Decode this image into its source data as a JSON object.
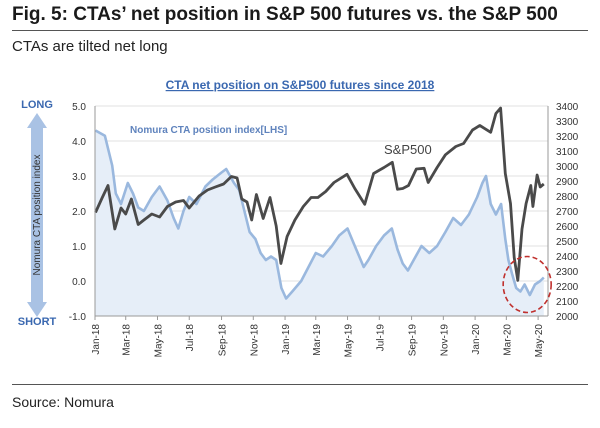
{
  "figure": {
    "title": "Fig. 5: CTAs’ net position in S&P 500 futures vs. the S&P 500",
    "subtitle": "CTAs are tilted net long",
    "source": "Source: Nomura"
  },
  "chart_data": {
    "type": "line",
    "title": "CTA net position on S&P500 futures since 2018",
    "axis_annotations": {
      "top": "LONG",
      "bottom": "SHORT",
      "side": "Nomura CTA position index"
    },
    "left_axis": {
      "ylim": [
        -1.0,
        5.0
      ],
      "ticks": [
        "-1.0",
        "0.0",
        "1.0",
        "2.0",
        "3.0",
        "4.0",
        "5.0"
      ]
    },
    "right_axis": {
      "ylim": [
        2000,
        3400
      ],
      "ticks": [
        "2000",
        "2100",
        "2200",
        "2300",
        "2400",
        "2500",
        "2600",
        "2700",
        "2800",
        "2900",
        "3000",
        "3100",
        "3200",
        "3300",
        "3400"
      ]
    },
    "x_ticks": [
      "Jan-18",
      "Mar-18",
      "May-18",
      "Jul-18",
      "Sep-18",
      "Nov-18",
      "Jan-19",
      "Mar-19",
      "May-19",
      "Jul-19",
      "Sep-19",
      "Nov-19",
      "Jan-20",
      "Mar-20",
      "May-20"
    ],
    "grid": true,
    "series": [
      {
        "name": "Nomura CTA position index[LHS]",
        "axis": "left",
        "style": "area",
        "color": "#9ab8de",
        "fill": "#e6eef8",
        "points": [
          [
            "2018-01-02",
            4.3
          ],
          [
            "2018-01-20",
            4.15
          ],
          [
            "2018-02-03",
            3.3
          ],
          [
            "2018-02-10",
            2.5
          ],
          [
            "2018-02-20",
            2.2
          ],
          [
            "2018-03-05",
            2.8
          ],
          [
            "2018-03-15",
            2.5
          ],
          [
            "2018-03-25",
            2.1
          ],
          [
            "2018-04-05",
            2.0
          ],
          [
            "2018-04-20",
            2.4
          ],
          [
            "2018-05-05",
            2.7
          ],
          [
            "2018-05-20",
            2.3
          ],
          [
            "2018-06-01",
            1.8
          ],
          [
            "2018-06-10",
            1.5
          ],
          [
            "2018-06-20",
            2.0
          ],
          [
            "2018-07-01",
            2.4
          ],
          [
            "2018-07-15",
            2.2
          ],
          [
            "2018-08-01",
            2.7
          ],
          [
            "2018-08-15",
            2.9
          ],
          [
            "2018-09-01",
            3.1
          ],
          [
            "2018-09-10",
            3.2
          ],
          [
            "2018-09-25",
            2.8
          ],
          [
            "2018-10-05",
            2.6
          ],
          [
            "2018-10-15",
            2.0
          ],
          [
            "2018-10-25",
            1.4
          ],
          [
            "2018-11-05",
            1.2
          ],
          [
            "2018-11-15",
            0.8
          ],
          [
            "2018-11-25",
            0.6
          ],
          [
            "2018-12-05",
            0.7
          ],
          [
            "2018-12-15",
            0.6
          ],
          [
            "2018-12-25",
            -0.2
          ],
          [
            "2019-01-03",
            -0.5
          ],
          [
            "2019-01-15",
            -0.3
          ],
          [
            "2019-02-01",
            0.0
          ],
          [
            "2019-02-15",
            0.4
          ],
          [
            "2019-03-01",
            0.8
          ],
          [
            "2019-03-15",
            0.7
          ],
          [
            "2019-04-01",
            1.0
          ],
          [
            "2019-04-15",
            1.3
          ],
          [
            "2019-05-01",
            1.5
          ],
          [
            "2019-05-15",
            1.0
          ],
          [
            "2019-06-01",
            0.4
          ],
          [
            "2019-06-10",
            0.6
          ],
          [
            "2019-06-25",
            1.0
          ],
          [
            "2019-07-10",
            1.3
          ],
          [
            "2019-07-25",
            1.5
          ],
          [
            "2019-08-05",
            0.9
          ],
          [
            "2019-08-15",
            0.5
          ],
          [
            "2019-08-25",
            0.3
          ],
          [
            "2019-09-05",
            0.6
          ],
          [
            "2019-09-20",
            1.0
          ],
          [
            "2019-10-05",
            0.8
          ],
          [
            "2019-10-20",
            1.0
          ],
          [
            "2019-11-05",
            1.4
          ],
          [
            "2019-11-20",
            1.8
          ],
          [
            "2019-12-05",
            1.6
          ],
          [
            "2019-12-20",
            1.9
          ],
          [
            "2020-01-05",
            2.4
          ],
          [
            "2020-01-15",
            2.8
          ],
          [
            "2020-01-22",
            3.0
          ],
          [
            "2020-01-31",
            2.2
          ],
          [
            "2020-02-10",
            1.9
          ],
          [
            "2020-02-20",
            2.2
          ],
          [
            "2020-02-28",
            1.2
          ],
          [
            "2020-03-05",
            0.6
          ],
          [
            "2020-03-12",
            0.2
          ],
          [
            "2020-03-20",
            -0.2
          ],
          [
            "2020-03-28",
            -0.3
          ],
          [
            "2020-04-05",
            -0.1
          ],
          [
            "2020-04-15",
            -0.4
          ],
          [
            "2020-04-25",
            -0.1
          ],
          [
            "2020-05-05",
            0.0
          ],
          [
            "2020-05-12",
            0.1
          ]
        ]
      },
      {
        "name": "S&P500",
        "axis": "right",
        "style": "line",
        "color": "#4a4a4a",
        "points": [
          [
            "2018-01-02",
            2690
          ],
          [
            "2018-01-15",
            2790
          ],
          [
            "2018-01-26",
            2870
          ],
          [
            "2018-02-08",
            2580
          ],
          [
            "2018-02-20",
            2720
          ],
          [
            "2018-03-01",
            2680
          ],
          [
            "2018-03-12",
            2780
          ],
          [
            "2018-03-25",
            2610
          ],
          [
            "2018-04-05",
            2640
          ],
          [
            "2018-04-20",
            2680
          ],
          [
            "2018-05-05",
            2660
          ],
          [
            "2018-05-20",
            2730
          ],
          [
            "2018-06-05",
            2760
          ],
          [
            "2018-06-20",
            2770
          ],
          [
            "2018-07-01",
            2720
          ],
          [
            "2018-07-20",
            2800
          ],
          [
            "2018-08-05",
            2840
          ],
          [
            "2018-08-20",
            2860
          ],
          [
            "2018-09-05",
            2880
          ],
          [
            "2018-09-20",
            2930
          ],
          [
            "2018-10-01",
            2920
          ],
          [
            "2018-10-10",
            2780
          ],
          [
            "2018-10-20",
            2760
          ],
          [
            "2018-10-29",
            2640
          ],
          [
            "2018-11-07",
            2810
          ],
          [
            "2018-11-20",
            2650
          ],
          [
            "2018-12-03",
            2790
          ],
          [
            "2018-12-15",
            2600
          ],
          [
            "2018-12-24",
            2350
          ],
          [
            "2019-01-05",
            2530
          ],
          [
            "2019-01-20",
            2640
          ],
          [
            "2019-02-05",
            2730
          ],
          [
            "2019-02-20",
            2790
          ],
          [
            "2019-03-05",
            2790
          ],
          [
            "2019-03-20",
            2830
          ],
          [
            "2019-04-05",
            2890
          ],
          [
            "2019-04-30",
            2945
          ],
          [
            "2019-05-15",
            2850
          ],
          [
            "2019-06-03",
            2745
          ],
          [
            "2019-06-20",
            2950
          ],
          [
            "2019-07-10",
            2990
          ],
          [
            "2019-07-26",
            3025
          ],
          [
            "2019-08-05",
            2845
          ],
          [
            "2019-08-15",
            2850
          ],
          [
            "2019-08-26",
            2870
          ],
          [
            "2019-09-10",
            2980
          ],
          [
            "2019-09-25",
            2985
          ],
          [
            "2019-10-03",
            2890
          ],
          [
            "2019-10-20",
            2990
          ],
          [
            "2019-11-05",
            3075
          ],
          [
            "2019-11-25",
            3130
          ],
          [
            "2019-12-10",
            3150
          ],
          [
            "2019-12-27",
            3240
          ],
          [
            "2020-01-10",
            3270
          ],
          [
            "2020-01-31",
            3225
          ],
          [
            "2020-02-10",
            3350
          ],
          [
            "2020-02-19",
            3386
          ],
          [
            "2020-02-28",
            2950
          ],
          [
            "2020-03-09",
            2750
          ],
          [
            "2020-03-16",
            2390
          ],
          [
            "2020-03-23",
            2237
          ],
          [
            "2020-03-31",
            2580
          ],
          [
            "2020-04-08",
            2750
          ],
          [
            "2020-04-17",
            2870
          ],
          [
            "2020-04-21",
            2730
          ],
          [
            "2020-04-29",
            2940
          ],
          [
            "2020-05-05",
            2860
          ],
          [
            "2020-05-12",
            2880
          ]
        ]
      }
    ],
    "series_labels": {
      "index": "Nomura CTA position index[LHS]",
      "spx": "S&P500"
    },
    "highlight": {
      "shape": "circle",
      "style": "dashed",
      "color": "#c0302d",
      "center": [
        "2020-04-10",
        -0.1
      ]
    }
  }
}
